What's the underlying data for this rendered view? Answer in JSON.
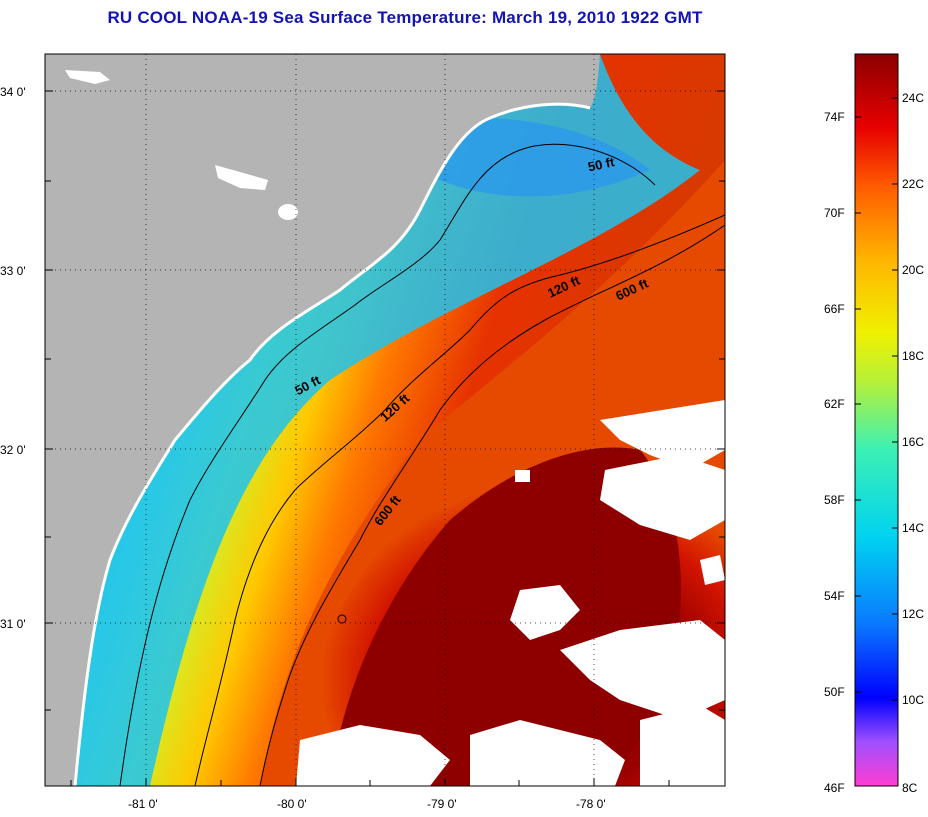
{
  "title": "RU COOL  NOAA-19  Sea Surface Temperature:  March 19, 2010 1922 GMT",
  "map": {
    "lat_labels": [
      "34 0'",
      "33 0'",
      "32 0'",
      "31 0'"
    ],
    "lon_labels": [
      "-81 0'",
      "-80 0'",
      "-79 0'",
      "-78 0'"
    ],
    "contour_labels": [
      "50 ft",
      "120 ft",
      "600 ft",
      "50 ft",
      "120 ft",
      "600 ft"
    ],
    "colors": {
      "land": "#b4b4b4",
      "cloud": "#ffffff"
    }
  },
  "colorbar": {
    "fahrenheit_labels": [
      "74F",
      "70F",
      "66F",
      "62F",
      "58F",
      "54F",
      "50F",
      "46F"
    ],
    "celsius_labels": [
      "24C",
      "22C",
      "20C",
      "18C",
      "16C",
      "14C",
      "12C",
      "10C",
      "8C"
    ],
    "range_celsius": [
      8,
      25
    ]
  }
}
